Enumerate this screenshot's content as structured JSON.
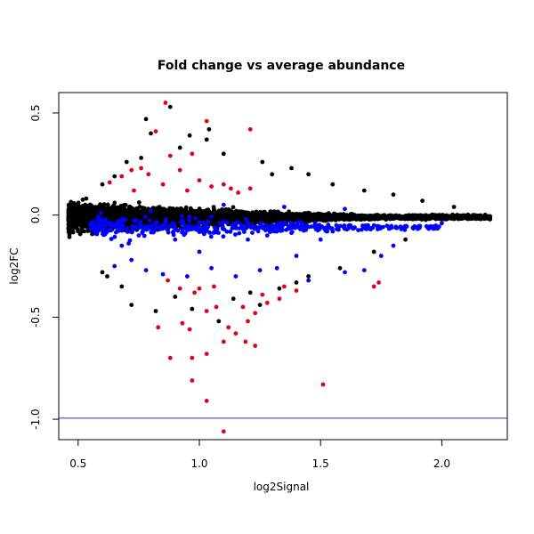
{
  "chart_data": {
    "type": "scatter",
    "title": "Fold change vs average abundance",
    "xlabel": "log2Signal",
    "ylabel": "log2FC",
    "xlim": [
      0.42,
      2.27
    ],
    "ylim": [
      -1.1,
      0.6
    ],
    "x_ticks": [
      {
        "value": 0.5,
        "label": "0.5"
      },
      {
        "value": 1.0,
        "label": "1.0"
      },
      {
        "value": 1.5,
        "label": "1.5"
      },
      {
        "value": 2.0,
        "label": "2.0"
      }
    ],
    "y_ticks": [
      {
        "value": -1.0,
        "label": "-1.0"
      },
      {
        "value": -0.5,
        "label": "-0.5"
      },
      {
        "value": 0.0,
        "label": "0.0"
      },
      {
        "value": 0.5,
        "label": "0.5"
      }
    ],
    "reference_lines": [
      {
        "orientation": "horizontal",
        "y": -0.995,
        "color": "#3333cc"
      }
    ],
    "grid": false,
    "legend": "none",
    "series": [
      {
        "color": "#000000",
        "description_of_bulk": "dense band of several thousand points around y=0, spread widening at low x and narrowing to ~±0.02 near x=2.2",
        "points": [
          [
            0.78,
            0.47
          ],
          [
            0.88,
            0.53
          ],
          [
            0.8,
            0.4
          ],
          [
            0.96,
            0.39
          ],
          [
            1.04,
            0.42
          ],
          [
            0.92,
            0.33
          ],
          [
            1.03,
            0.37
          ],
          [
            0.76,
            0.28
          ],
          [
            0.7,
            0.26
          ],
          [
            1.1,
            0.3
          ],
          [
            1.26,
            0.26
          ],
          [
            1.3,
            0.2
          ],
          [
            1.45,
            0.2
          ],
          [
            1.38,
            0.23
          ],
          [
            0.65,
            0.19
          ],
          [
            0.6,
            0.15
          ],
          [
            1.55,
            0.15
          ],
          [
            1.68,
            0.12
          ],
          [
            1.8,
            0.1
          ],
          [
            1.92,
            0.07
          ],
          [
            2.05,
            0.04
          ],
          [
            0.72,
            -0.44
          ],
          [
            0.68,
            -0.35
          ],
          [
            0.82,
            -0.47
          ],
          [
            0.97,
            -0.46
          ],
          [
            1.08,
            -0.52
          ],
          [
            1.25,
            -0.44
          ],
          [
            1.33,
            -0.36
          ],
          [
            1.45,
            -0.3
          ],
          [
            1.58,
            -0.26
          ],
          [
            1.72,
            -0.18
          ],
          [
            1.85,
            -0.12
          ],
          [
            0.6,
            -0.28
          ],
          [
            0.62,
            -0.3
          ],
          [
            0.9,
            -0.4
          ],
          [
            1.14,
            -0.41
          ],
          [
            1.21,
            -0.38
          ],
          [
            1.4,
            -0.33
          ]
        ]
      },
      {
        "color": "#0000ff",
        "description_of_bulk": "hundreds of points mostly between y=-0.35 and y=0.1 across x 0.5 to 2.0",
        "points": [
          [
            0.65,
            -0.25
          ],
          [
            0.72,
            -0.22
          ],
          [
            0.78,
            -0.27
          ],
          [
            0.85,
            -0.29
          ],
          [
            0.95,
            -0.3
          ],
          [
            1.05,
            -0.26
          ],
          [
            1.15,
            -0.3
          ],
          [
            1.25,
            -0.27
          ],
          [
            1.32,
            -0.26
          ],
          [
            1.45,
            -0.32
          ],
          [
            1.6,
            -0.28
          ],
          [
            1.68,
            -0.27
          ],
          [
            1.75,
            -0.2
          ],
          [
            1.8,
            -0.15
          ],
          [
            0.58,
            -0.08
          ],
          [
            0.9,
            -0.12
          ],
          [
            1.2,
            -0.12
          ],
          [
            1.5,
            -0.12
          ],
          [
            1.9,
            -0.06
          ],
          [
            2.0,
            -0.04
          ],
          [
            0.8,
            0.02
          ],
          [
            1.1,
            0.05
          ],
          [
            1.35,
            0.04
          ],
          [
            1.6,
            0.03
          ],
          [
            0.68,
            -0.15
          ],
          [
            1.0,
            -0.18
          ],
          [
            1.4,
            -0.2
          ],
          [
            1.28,
            -0.1
          ],
          [
            0.75,
            -0.1
          ],
          [
            1.55,
            -0.08
          ]
        ]
      },
      {
        "color": "#e3001b",
        "points": [
          [
            0.86,
            0.55
          ],
          [
            1.03,
            0.46
          ],
          [
            0.82,
            0.41
          ],
          [
            1.21,
            0.42
          ],
          [
            0.97,
            0.3
          ],
          [
            0.88,
            0.29
          ],
          [
            0.92,
            0.22
          ],
          [
            0.72,
            0.22
          ],
          [
            0.79,
            0.2
          ],
          [
            0.85,
            0.15
          ],
          [
            1.0,
            0.17
          ],
          [
            1.1,
            0.15
          ],
          [
            1.13,
            0.13
          ],
          [
            0.68,
            0.19
          ],
          [
            0.63,
            0.16
          ],
          [
            0.76,
            0.23
          ],
          [
            0.95,
            0.12
          ],
          [
            1.16,
            0.11
          ],
          [
            1.21,
            0.13
          ],
          [
            0.73,
            0.12
          ],
          [
            1.05,
            0.14
          ],
          [
            0.83,
            -0.55
          ],
          [
            0.93,
            -0.53
          ],
          [
            0.96,
            -0.56
          ],
          [
            1.03,
            -0.47
          ],
          [
            1.07,
            -0.45
          ],
          [
            1.12,
            -0.55
          ],
          [
            1.15,
            -0.58
          ],
          [
            1.2,
            -0.52
          ],
          [
            1.23,
            -0.48
          ],
          [
            1.1,
            -0.62
          ],
          [
            1.19,
            -0.62
          ],
          [
            1.23,
            -0.64
          ],
          [
            1.26,
            -0.39
          ],
          [
            1.28,
            -0.43
          ],
          [
            1.33,
            -0.41
          ],
          [
            1.35,
            -0.35
          ],
          [
            1.4,
            -0.37
          ],
          [
            0.88,
            -0.7
          ],
          [
            0.97,
            -0.7
          ],
          [
            0.97,
            -0.81
          ],
          [
            1.03,
            -0.68
          ],
          [
            1.03,
            -0.91
          ],
          [
            1.1,
            -1.06
          ],
          [
            1.51,
            -0.83
          ],
          [
            1.72,
            -0.35
          ],
          [
            1.74,
            -0.33
          ],
          [
            0.87,
            -0.32
          ],
          [
            0.92,
            -0.36
          ],
          [
            0.98,
            -0.38
          ],
          [
            1.0,
            -0.36
          ],
          [
            1.06,
            -0.35
          ],
          [
            1.18,
            -0.45
          ]
        ]
      }
    ]
  }
}
